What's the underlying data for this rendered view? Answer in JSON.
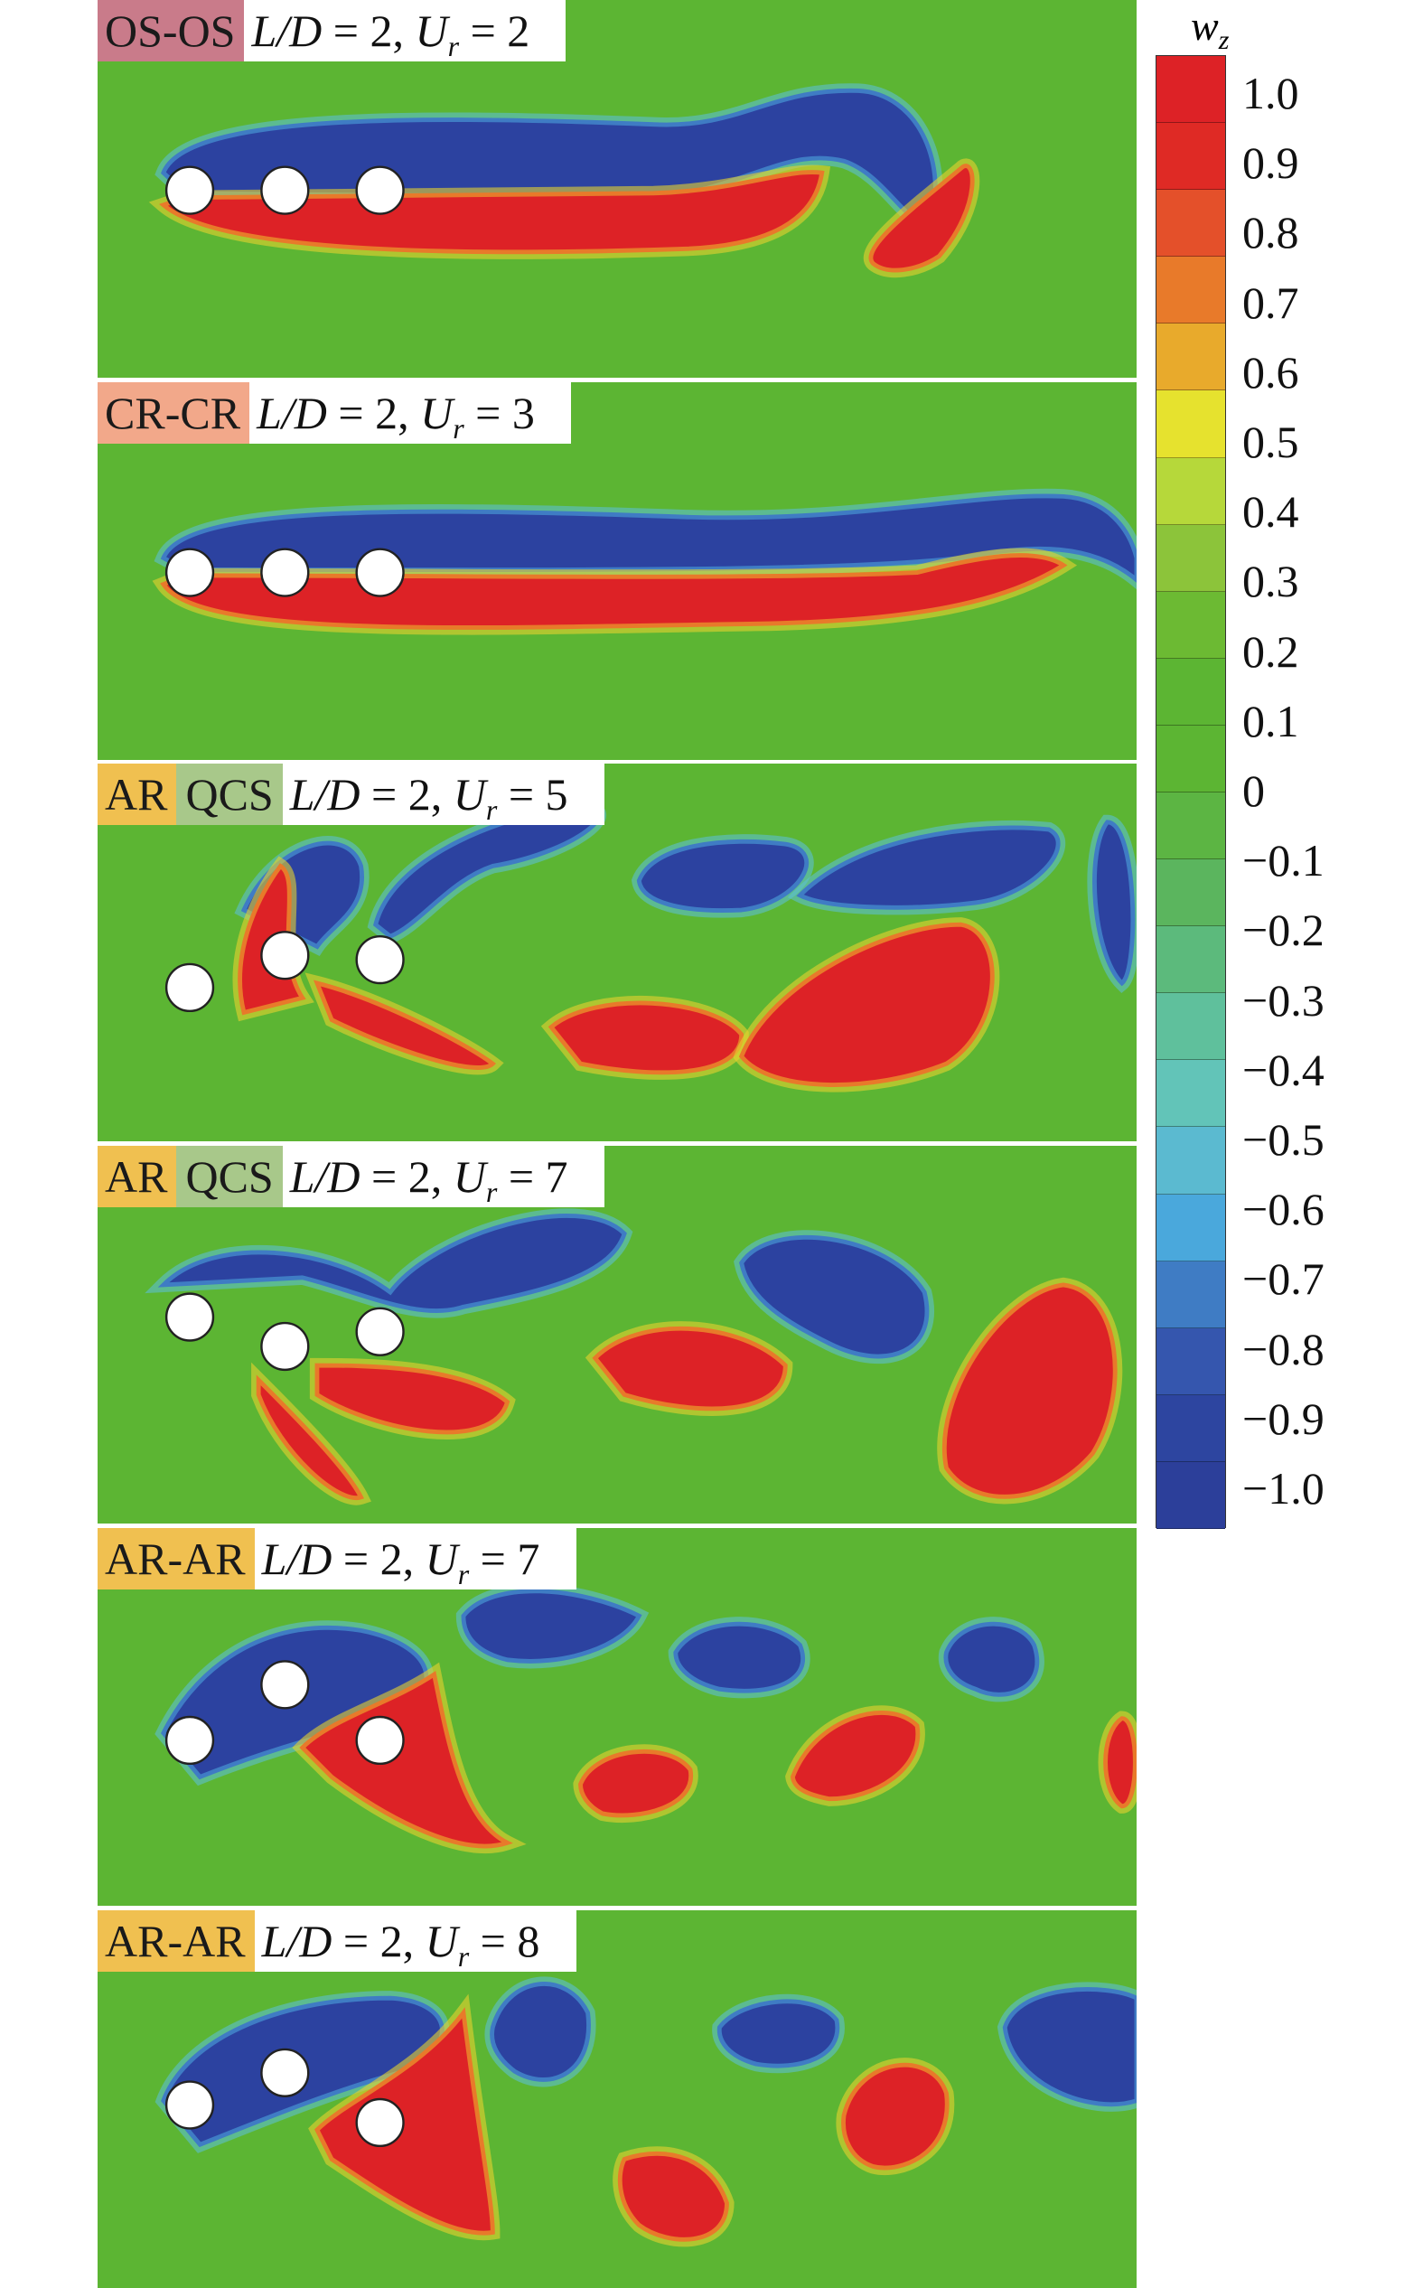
{
  "chart_data": {
    "type": "heatmap",
    "title": "",
    "colorbar": {
      "label": "w",
      "label_subscript": "z",
      "ticks": [
        "1.0",
        "0.9",
        "0.8",
        "0.7",
        "0.6",
        "0.5",
        "0.4",
        "0.3",
        "0.2",
        "0.1",
        "0",
        "−0.1",
        "−0.2",
        "−0.3",
        "−0.4",
        "−0.5",
        "−0.6",
        "−0.7",
        "−0.8",
        "−0.9",
        "−1.0"
      ],
      "range": [
        -1.0,
        1.0
      ],
      "colors": [
        "#dd2226",
        "#df2a25",
        "#e4502a",
        "#e87a2a",
        "#e8aa2c",
        "#e6e22e",
        "#b6d83a",
        "#8cc43a",
        "#6cba33",
        "#5cb533",
        "#5cb533",
        "#5cb543",
        "#5bb55e",
        "#5cba7c",
        "#5fc09c",
        "#62c4b8",
        "#5bbad0",
        "#4aa8dc",
        "#3f7cc4",
        "#3556ae",
        "#2d45a0",
        "#2c3f9a"
      ]
    },
    "panels": [
      {
        "tags": [
          {
            "text": "OS-OS",
            "color": "#c97b8a"
          }
        ],
        "ld": "2",
        "ur": "2"
      },
      {
        "tags": [
          {
            "text": "CR-CR",
            "color": "#f2a88a"
          }
        ],
        "ld": "2",
        "ur": "3"
      },
      {
        "tags": [
          {
            "text": "AR",
            "color": "#f0c050"
          },
          {
            "text": "QCS",
            "color": "#a8c88a"
          }
        ],
        "ld": "2",
        "ur": "5"
      },
      {
        "tags": [
          {
            "text": "AR",
            "color": "#f0c050"
          },
          {
            "text": "QCS",
            "color": "#a8c88a"
          }
        ],
        "ld": "2",
        "ur": "7"
      },
      {
        "tags": [
          {
            "text": "AR-AR",
            "color": "#f0c050"
          }
        ],
        "ld": "2",
        "ur": "7"
      },
      {
        "tags": [
          {
            "text": "AR-AR",
            "color": "#f0c050"
          }
        ],
        "ld": "2",
        "ur": "8"
      }
    ],
    "param_text": {
      "ld_label": "L/D",
      "eq": " = ",
      "ur_label": "U",
      "ur_sub": "r"
    }
  }
}
